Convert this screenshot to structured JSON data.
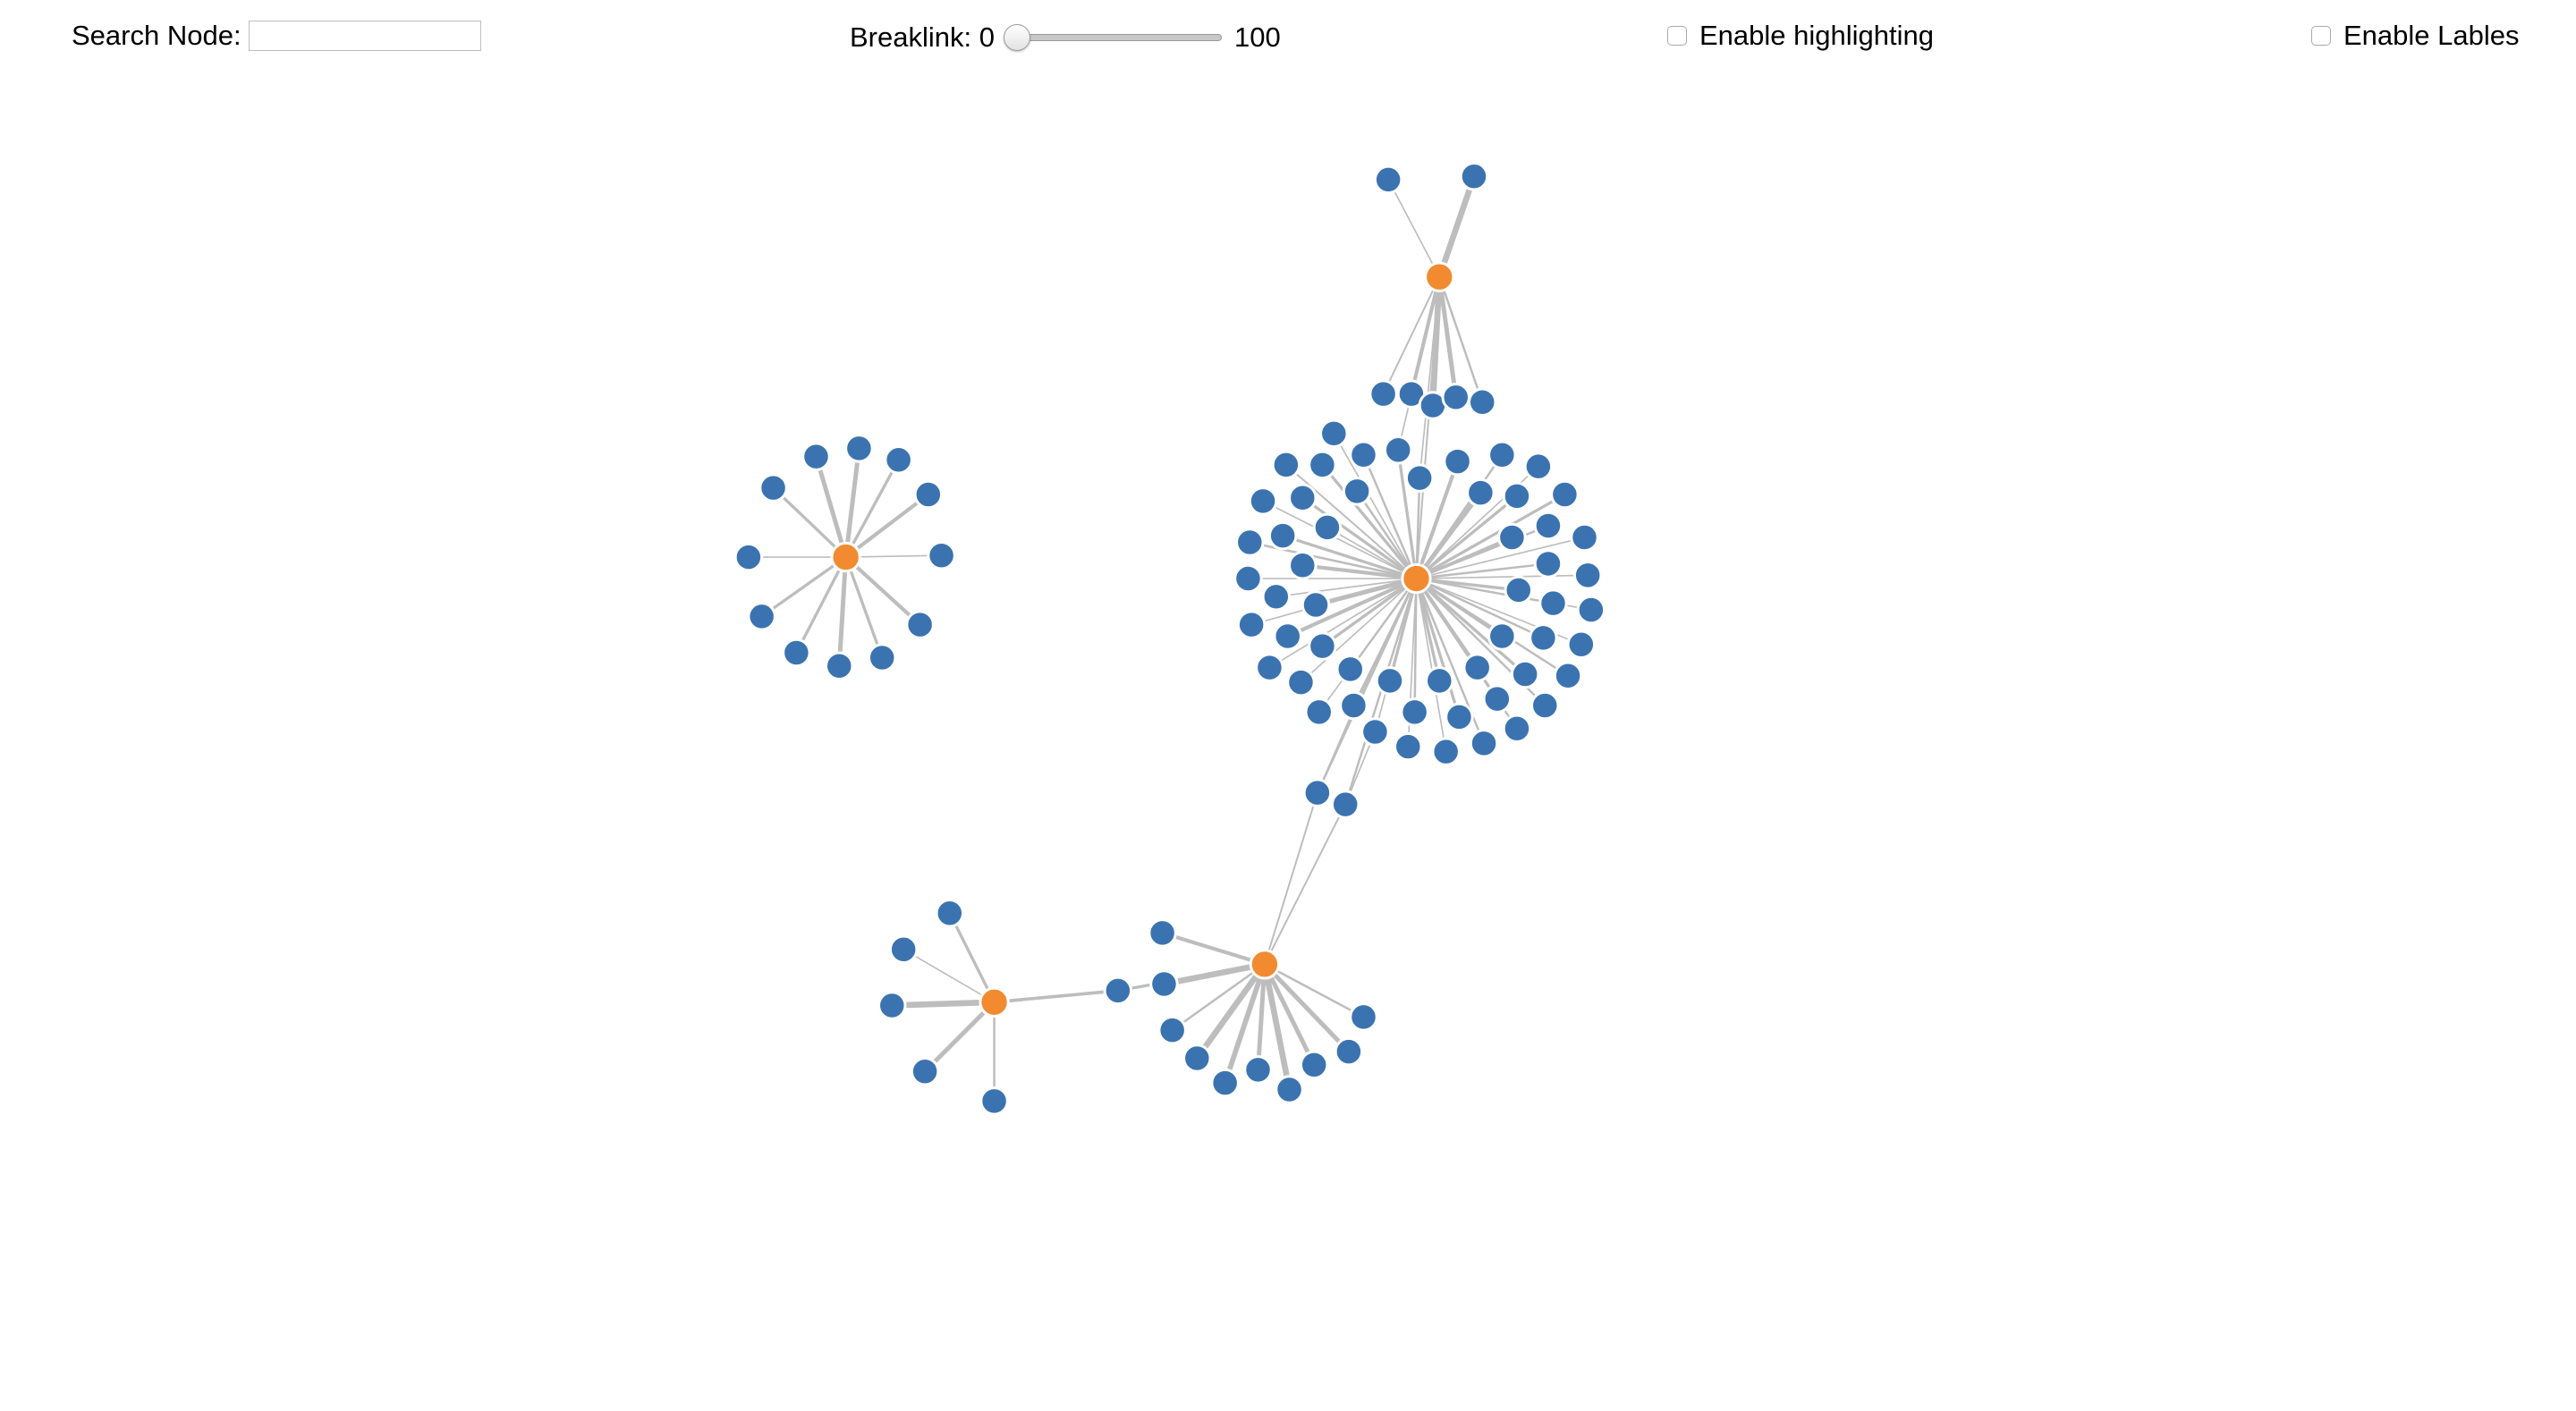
{
  "controls": {
    "search_label": "Search Node:",
    "search_value": "",
    "breaklink_label": "Breaklink: 0",
    "breaklink_max": "100",
    "breaklink_value": 0,
    "highlight_label": "Enable highlighting",
    "highlight_checked": false,
    "labels_label": "Enable Lables",
    "labels_checked": false
  },
  "colors": {
    "hub_node": "#f28a30",
    "leaf_node": "#3b73b0",
    "edge": "#bdbdbd"
  },
  "graph": {
    "node_count": 107,
    "hub_count": 5
  }
}
